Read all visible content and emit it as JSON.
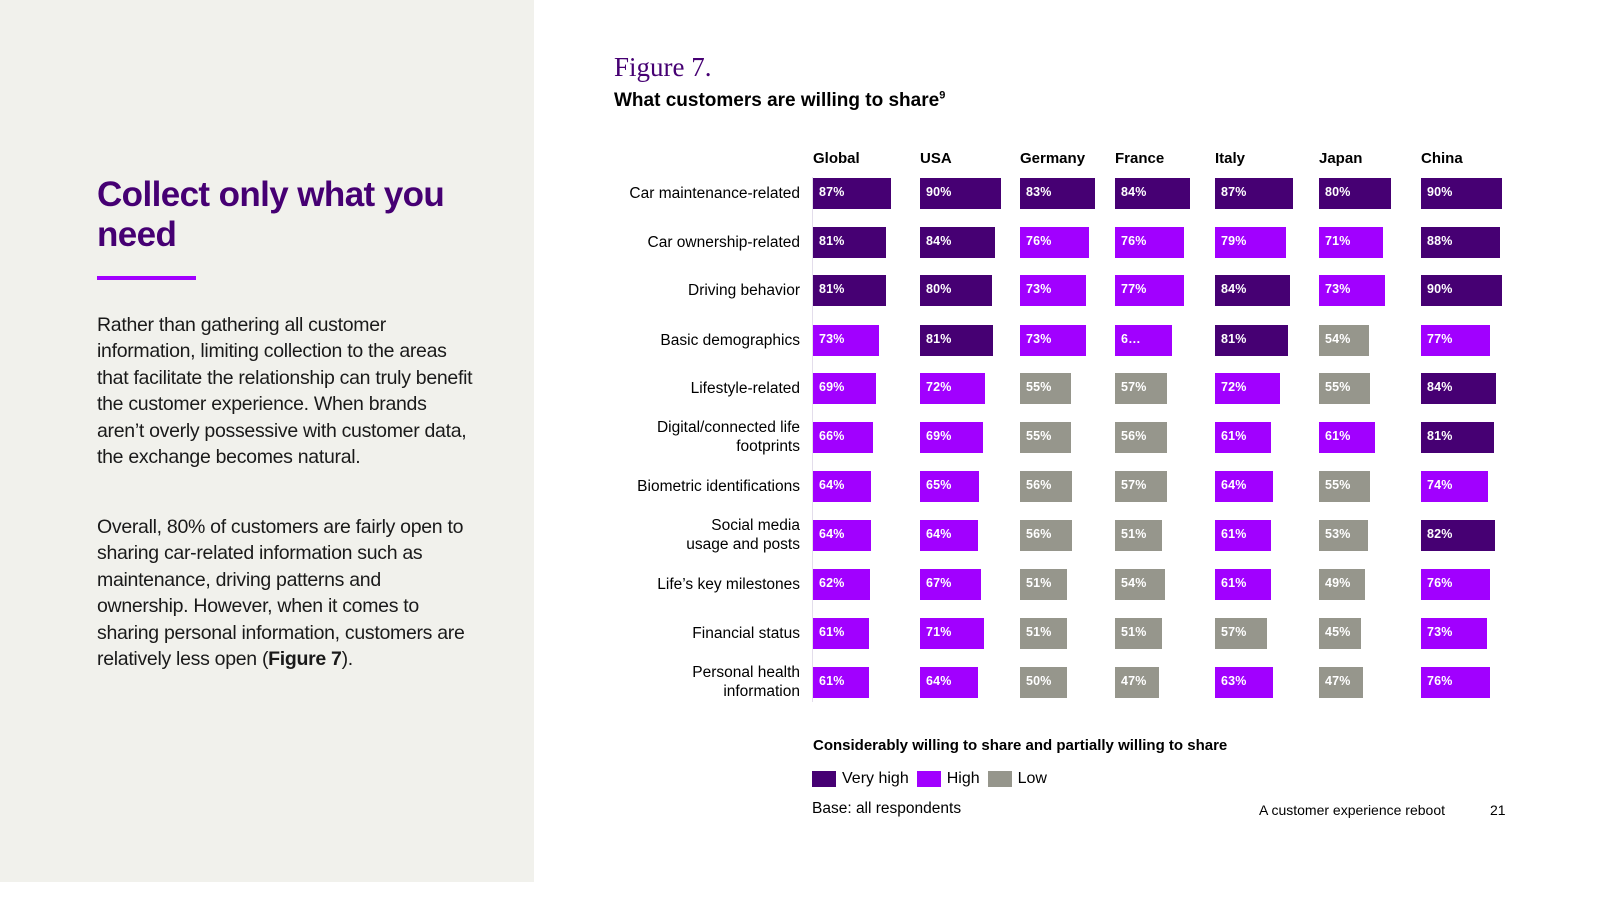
{
  "left_panel": {
    "title": "Collect only what you need",
    "paragraph1": "Rather than gathering all customer information, limiting collection to the areas that facilitate the relationship can truly benefit the customer experience. When brands aren’t overly possessive with customer data, the exchange becomes natural.",
    "paragraph2_prefix": "Overall, 80% of customers are fairly open to sharing car-related information such as maintenance, driving patterns and ownership. However, when it comes to sharing personal information, customers are relatively less open (",
    "paragraph2_bold": "Figure 7",
    "paragraph2_suffix": ")."
  },
  "figure": {
    "label": "Figure 7.",
    "title": "What customers are willing to share",
    "footnote": "9"
  },
  "colors": {
    "very_high": "#460073",
    "high": "#A100FF",
    "low": "#96968C",
    "panel_bg": "#F1F1EC"
  },
  "chart_data": {
    "type": "table",
    "title": "What customers are willing to share",
    "subtitle": "Considerably willing to share and partially willing to share",
    "columns": [
      "Global",
      "USA",
      "Germany",
      "France",
      "Italy",
      "Japan",
      "China"
    ],
    "rows": [
      "Car maintenance-related",
      "Car ownership-related",
      "Driving behavior",
      "Basic demographics",
      "Lifestyle-related",
      "Digital/connected life\nfootprints",
      "Biometric identifications",
      "Social media\nusage and posts",
      "Life’s key milestones",
      "Financial status",
      "Personal health\ninformation"
    ],
    "unit": "%",
    "values": [
      [
        87,
        90,
        83,
        84,
        87,
        80,
        90
      ],
      [
        81,
        84,
        76,
        76,
        79,
        71,
        88
      ],
      [
        81,
        80,
        73,
        77,
        84,
        73,
        90
      ],
      [
        73,
        81,
        73,
        62,
        81,
        54,
        77
      ],
      [
        69,
        72,
        55,
        57,
        72,
        55,
        84
      ],
      [
        66,
        69,
        55,
        56,
        61,
        61,
        81
      ],
      [
        64,
        65,
        56,
        57,
        64,
        55,
        74
      ],
      [
        64,
        64,
        56,
        51,
        61,
        53,
        82
      ],
      [
        62,
        67,
        51,
        54,
        61,
        49,
        76
      ],
      [
        61,
        71,
        51,
        51,
        57,
        45,
        73
      ],
      [
        61,
        64,
        50,
        47,
        63,
        47,
        76
      ]
    ],
    "display_labels": [
      [
        "87%",
        "90%",
        "83%",
        "84%",
        "87%",
        "80%",
        "90%"
      ],
      [
        "81%",
        "84%",
        "76%",
        "76%",
        "79%",
        "71%",
        "88%"
      ],
      [
        "81%",
        "80%",
        "73%",
        "77%",
        "84%",
        "73%",
        "90%"
      ],
      [
        "73%",
        "81%",
        "73%",
        "6…",
        "81%",
        "54%",
        "77%"
      ],
      [
        "69%",
        "72%",
        "55%",
        "57%",
        "72%",
        "55%",
        "84%"
      ],
      [
        "66%",
        "69%",
        "55%",
        "56%",
        "61%",
        "61%",
        "81%"
      ],
      [
        "64%",
        "65%",
        "56%",
        "57%",
        "64%",
        "55%",
        "74%"
      ],
      [
        "64%",
        "64%",
        "56%",
        "51%",
        "61%",
        "53%",
        "82%"
      ],
      [
        "62%",
        "67%",
        "51%",
        "54%",
        "61%",
        "49%",
        "76%"
      ],
      [
        "61%",
        "71%",
        "51%",
        "51%",
        "57%",
        "45%",
        "73%"
      ],
      [
        "61%",
        "64%",
        "50%",
        "47%",
        "63%",
        "47%",
        "76%"
      ]
    ],
    "levels": [
      [
        "very_high",
        "very_high",
        "very_high",
        "very_high",
        "very_high",
        "very_high",
        "very_high"
      ],
      [
        "very_high",
        "very_high",
        "high",
        "high",
        "high",
        "high",
        "very_high"
      ],
      [
        "very_high",
        "very_high",
        "high",
        "high",
        "very_high",
        "high",
        "very_high"
      ],
      [
        "high",
        "very_high",
        "high",
        "high",
        "very_high",
        "low",
        "high"
      ],
      [
        "high",
        "high",
        "low",
        "low",
        "high",
        "low",
        "very_high"
      ],
      [
        "high",
        "high",
        "low",
        "low",
        "high",
        "high",
        "very_high"
      ],
      [
        "high",
        "high",
        "low",
        "low",
        "high",
        "low",
        "high"
      ],
      [
        "high",
        "high",
        "low",
        "low",
        "high",
        "low",
        "very_high"
      ],
      [
        "high",
        "high",
        "low",
        "low",
        "high",
        "low",
        "high"
      ],
      [
        "high",
        "high",
        "low",
        "low",
        "low",
        "low",
        "high"
      ],
      [
        "high",
        "high",
        "low",
        "low",
        "high",
        "low",
        "high"
      ]
    ],
    "legend": [
      {
        "key": "very_high",
        "label": "Very high"
      },
      {
        "key": "high",
        "label": "High"
      },
      {
        "key": "low",
        "label": "Low"
      }
    ],
    "legend_position": "bottom-left",
    "note": "Base: all respondents"
  },
  "footer": {
    "publication": "A customer experience reboot",
    "page_number": "21"
  }
}
